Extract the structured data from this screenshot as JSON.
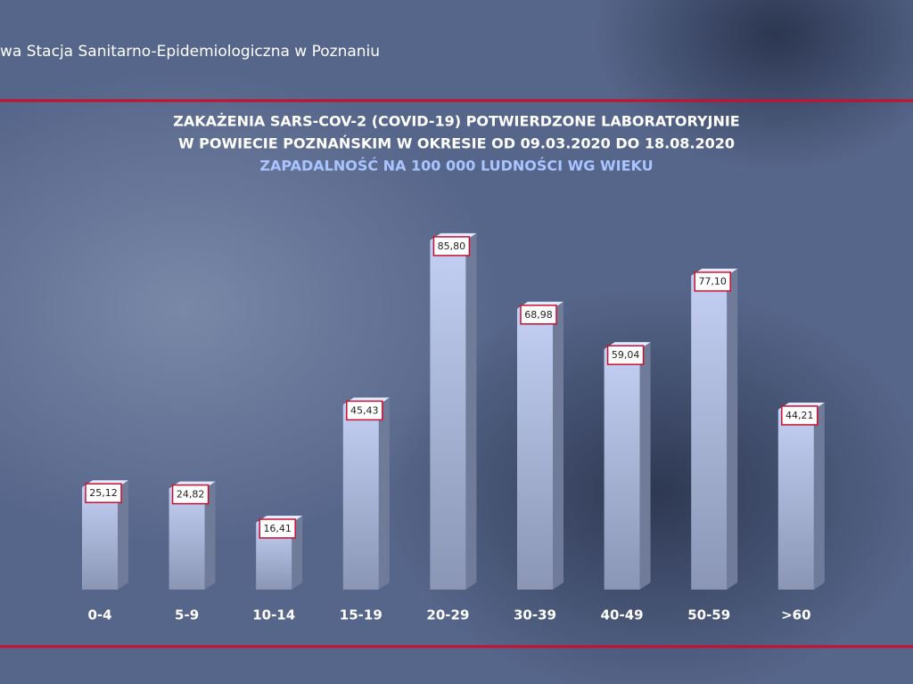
{
  "header": "wa Stacja Sanitarno-Epidemiologiczna w Poznaniu",
  "chart_data": {
    "type": "bar",
    "title": [
      "ZAKAŻENIA SARS-COV-2 (COVID-19) POTWIERDZONE LABORATORYJNIE",
      "W POWIECIE POZNAŃSKIM W OKRESIE OD 09.03.2020 DO 18.08.2020"
    ],
    "subtitle": "ZAPADALNOŚĆ NA 100 000 LUDNOŚCI WG WIEKU",
    "categories": [
      "0-4",
      "5-9",
      "10-14",
      "15-19",
      "20-29",
      "30-39",
      "40-49",
      "50-59",
      ">60"
    ],
    "values": [
      25.12,
      24.82,
      16.41,
      45.43,
      85.8,
      68.98,
      59.04,
      77.1,
      44.21
    ],
    "value_labels": [
      "25,12",
      "24,82",
      "16,41",
      "45,43",
      "85,80",
      "68,98",
      "59,04",
      "77,10",
      "44,21"
    ],
    "color": "#c4d0f4"
  }
}
